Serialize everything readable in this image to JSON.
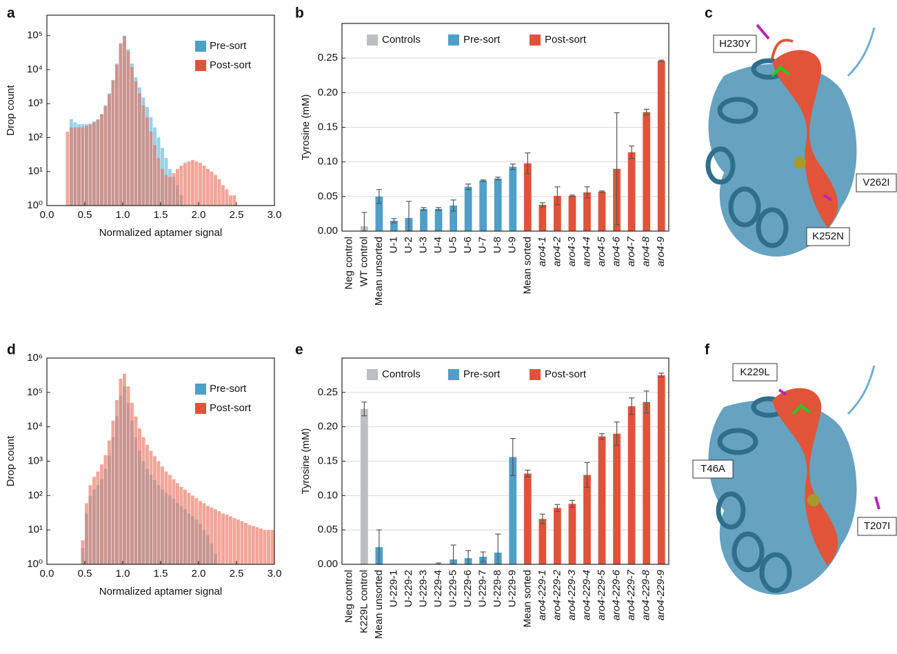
{
  "panel_labels": [
    "a",
    "b",
    "c",
    "d",
    "e",
    "f"
  ],
  "structures": [
    {
      "labels": [
        "H230Y",
        "V262I",
        "K252N"
      ]
    },
    {
      "labels": [
        "K229L",
        "T46A",
        "T207I"
      ]
    }
  ],
  "chart_data": [
    {
      "type": "histogram",
      "xlabel": "Normalized aptamer signal",
      "ylabel": "Drop count",
      "log_y": true,
      "legend": "upper right",
      "xlim": [
        0,
        3
      ],
      "ylim": [
        1,
        400000
      ],
      "xticks": [
        {
          "value": 0,
          "label": "0.0"
        },
        0.5,
        {
          "value": 1,
          "label": "1.0"
        },
        1.5,
        {
          "value": 2,
          "label": "2.0"
        },
        2.5,
        {
          "value": 3,
          "label": "3.0"
        }
      ],
      "yticks": [
        {
          "value": 1,
          "label": "10⁰"
        },
        {
          "value": 10,
          "label": "10¹"
        },
        {
          "value": 100,
          "label": "10²"
        },
        {
          "value": 1000,
          "label": "10³"
        },
        {
          "value": 10000,
          "label": "10⁴"
        },
        {
          "value": 100000,
          "label": "10⁵"
        }
      ],
      "bins": [
        0.2,
        0.25,
        0.3,
        0.35,
        0.4,
        0.45,
        0.5,
        0.55,
        0.6,
        0.65,
        0.7,
        0.75,
        0.8,
        0.85,
        0.9,
        0.95,
        1.0,
        1.05,
        1.1,
        1.15,
        1.2,
        1.25,
        1.3,
        1.35,
        1.4,
        1.45,
        1.5,
        1.55,
        1.6,
        1.65,
        1.7,
        1.75,
        1.8,
        1.85,
        1.9,
        1.95,
        2.0,
        2.05,
        2.1,
        2.15,
        2.2,
        2.25,
        2.3,
        2.35,
        2.4,
        2.45,
        2.5,
        2.55,
        2.6
      ],
      "series": [
        {
          "name": "Pre-sort",
          "color": "#5bb5d8",
          "legend_color": "#4f9fc8",
          "values": [
            null,
            null,
            350,
            280,
            250,
            250,
            250,
            260,
            300,
            350,
            500,
            900,
            2000,
            5000,
            15000,
            60000,
            100000,
            40000,
            15000,
            6000,
            3000,
            1500,
            800,
            400,
            200,
            100,
            50,
            25,
            12,
            7,
            4,
            2,
            1,
            null,
            null,
            null,
            null,
            null,
            null,
            null,
            null,
            null,
            null,
            null,
            null,
            null,
            null,
            null
          ]
        },
        {
          "name": "Post-sort",
          "color": "#e8705a",
          "legend_color": "#e0533a",
          "values": [
            null,
            150,
            200,
            200,
            200,
            200,
            220,
            240,
            280,
            330,
            480,
            850,
            1900,
            4800,
            14000,
            58000,
            95000,
            35000,
            12000,
            4500,
            2000,
            900,
            400,
            150,
            60,
            25,
            12,
            8,
            7,
            9,
            12,
            15,
            18,
            20,
            22,
            20,
            18,
            15,
            12,
            10,
            8,
            6,
            4,
            3,
            2,
            2,
            1,
            null
          ]
        }
      ]
    },
    {
      "type": "bar",
      "ylabel": "Tyrosine (mM)",
      "legend": "upper center",
      "grid": true,
      "ylim": [
        0,
        0.3
      ],
      "yticks": [
        {
          "value": 0,
          "label": "0.00"
        },
        0.05,
        {
          "value": 0.1,
          "label": "0.10"
        },
        0.15,
        {
          "value": 0.2,
          "label": "0.20"
        },
        0.25
      ],
      "categories": [
        "Neg control",
        "WT control",
        "Mean unsorted",
        "U-1",
        "U-2",
        "U-3",
        "U-4",
        "U-5",
        "U-6",
        "U-7",
        "U-8",
        "U-9",
        "Mean sorted",
        "aro4-1",
        "aro4-2",
        "aro4-3",
        "aro4-4",
        "aro4-5",
        "aro4-6",
        "aro4-7",
        "aro4-8",
        "aro4-9"
      ],
      "series": [
        {
          "name": "Controls",
          "color": "#bdbdc4",
          "values": [
            0,
            0.007,
            null,
            null,
            null,
            null,
            null,
            null,
            null,
            null,
            null,
            null,
            null,
            null,
            null,
            null,
            null,
            null,
            null,
            null,
            null,
            null
          ],
          "errors": [
            null,
            0.02,
            null,
            null,
            null,
            null,
            null,
            null,
            null,
            null,
            null,
            null,
            null,
            null,
            null,
            null,
            null,
            null,
            null,
            null,
            null,
            null
          ]
        },
        {
          "name": "Pre-sort",
          "color": "#4f9fc8",
          "values": [
            null,
            null,
            0.05,
            0.015,
            0.019,
            0.032,
            0.032,
            0.037,
            0.064,
            0.073,
            0.076,
            0.093,
            null,
            null,
            null,
            null,
            null,
            null,
            null,
            null,
            null,
            null
          ],
          "errors": [
            null,
            null,
            0.01,
            0.003,
            0.024,
            0.002,
            0.002,
            0.008,
            0.004,
            0.001,
            0.002,
            0.004,
            null,
            null,
            null,
            null,
            null,
            null,
            null,
            null,
            null,
            null
          ]
        },
        {
          "name": "Post-sort",
          "color": "#e0533a",
          "values": [
            null,
            null,
            null,
            null,
            null,
            null,
            null,
            null,
            null,
            null,
            null,
            null,
            0.098,
            0.038,
            0.051,
            0.051,
            0.056,
            0.057,
            0.09,
            0.114,
            0.172,
            0.246
          ],
          "errors": [
            null,
            null,
            null,
            null,
            null,
            null,
            null,
            null,
            null,
            null,
            null,
            null,
            0.015,
            0.003,
            0.013,
            0.001,
            0.008,
            0.001,
            0.081,
            0.009,
            0.004,
            0.001
          ]
        }
      ]
    },
    {
      "type": "histogram",
      "xlabel": "Normalized aptamer signal",
      "ylabel": "Drop count",
      "log_y": true,
      "legend": "upper right",
      "xlim": [
        0,
        3
      ],
      "ylim": [
        1,
        1000000
      ],
      "xticks": [
        {
          "value": 0,
          "label": "0.0"
        },
        0.5,
        {
          "value": 1,
          "label": "1.0"
        },
        1.5,
        {
          "value": 2,
          "label": "2.0"
        },
        2.5,
        {
          "value": 3,
          "label": "3.0"
        }
      ],
      "yticks": [
        {
          "value": 1,
          "label": "10⁰"
        },
        {
          "value": 10,
          "label": "10¹"
        },
        {
          "value": 100,
          "label": "10²"
        },
        {
          "value": 1000,
          "label": "10³"
        },
        {
          "value": 10000,
          "label": "10⁴"
        },
        {
          "value": 100000,
          "label": "10⁵"
        },
        {
          "value": 1000000,
          "label": "10⁶"
        }
      ],
      "bins": [
        0.4,
        0.45,
        0.5,
        0.55,
        0.6,
        0.65,
        0.7,
        0.75,
        0.8,
        0.85,
        0.9,
        0.95,
        1.0,
        1.05,
        1.1,
        1.15,
        1.2,
        1.25,
        1.3,
        1.35,
        1.4,
        1.45,
        1.5,
        1.55,
        1.6,
        1.65,
        1.7,
        1.75,
        1.8,
        1.85,
        1.9,
        1.95,
        2.0,
        2.05,
        2.1,
        2.15,
        2.2,
        2.25,
        2.3,
        2.35,
        2.4,
        2.45,
        2.5,
        2.55,
        2.6,
        2.65,
        2.7,
        2.75,
        2.8,
        2.85,
        2.9,
        2.95,
        3.0
      ],
      "series": [
        {
          "name": "Pre-sort",
          "color": "#5bb5d8",
          "legend_color": "#4f9fc8",
          "values": [
            null,
            3,
            30,
            100,
            150,
            200,
            300,
            600,
            1500,
            5000,
            20000,
            80000,
            150000,
            50000,
            15000,
            5000,
            2000,
            1000,
            600,
            400,
            280,
            200,
            150,
            120,
            100,
            80,
            60,
            50,
            40,
            30,
            25,
            20,
            15,
            10,
            7,
            4,
            2,
            null,
            null,
            null,
            null,
            null,
            null,
            null,
            null,
            null,
            null,
            null,
            null,
            null,
            null,
            null
          ]
        },
        {
          "name": "Post-sort",
          "color": "#e8705a",
          "legend_color": "#e0533a",
          "values": [
            null,
            5,
            60,
            200,
            350,
            500,
            800,
            1500,
            4000,
            15000,
            60000,
            250000,
            350000,
            150000,
            50000,
            20000,
            9000,
            5000,
            3000,
            2000,
            1400,
            1000,
            700,
            500,
            400,
            300,
            230,
            180,
            150,
            120,
            100,
            85,
            70,
            60,
            50,
            45,
            40,
            35,
            30,
            28,
            25,
            22,
            20,
            18,
            16,
            14,
            13,
            12,
            11,
            10,
            10,
            10
          ]
        }
      ]
    },
    {
      "type": "bar",
      "ylabel": "Tyrosine (mM)",
      "legend": "upper center",
      "grid": true,
      "ylim": [
        0,
        0.3
      ],
      "yticks": [
        {
          "value": 0,
          "label": "0.00"
        },
        0.05,
        {
          "value": 0.1,
          "label": "0.10"
        },
        0.15,
        {
          "value": 0.2,
          "label": "0.20"
        },
        0.25
      ],
      "categories": [
        "Neg control",
        "K229L control",
        "Mean unsorted",
        "U-229-1",
        "U-229-2",
        "U-229-3",
        "U-229-4",
        "U-229-5",
        "U-229-6",
        "U-229-7",
        "U-229-8",
        "U-229-9",
        "Mean sorted",
        "aro4-229-1",
        "aro4-229-2",
        "aro4-229-3",
        "aro4-229-4",
        "aro4-229-5",
        "aro4-229-6",
        "aro4-229-7",
        "aro4-229-8",
        "aro4-229-9"
      ],
      "series": [
        {
          "name": "Controls",
          "color": "#bdbdc4",
          "values": [
            0,
            0.226,
            null,
            null,
            null,
            null,
            null,
            null,
            null,
            null,
            null,
            null,
            null,
            null,
            null,
            null,
            null,
            null,
            null,
            null,
            null,
            null
          ],
          "errors": [
            null,
            0.01,
            null,
            null,
            null,
            null,
            null,
            null,
            null,
            null,
            null,
            null,
            null,
            null,
            null,
            null,
            null,
            null,
            null,
            null,
            null,
            null
          ]
        },
        {
          "name": "Pre-sort",
          "color": "#4f9fc8",
          "values": [
            null,
            null,
            0.025,
            0,
            0,
            0,
            0,
            0.007,
            0.009,
            0.011,
            0.017,
            0.156,
            null,
            null,
            null,
            null,
            null,
            null,
            null,
            null,
            null,
            null
          ],
          "errors": [
            null,
            null,
            0.025,
            null,
            null,
            null,
            0.002,
            0.021,
            0.011,
            0.007,
            0.027,
            0.027,
            null,
            null,
            null,
            null,
            null,
            null,
            null,
            null,
            null,
            null
          ]
        },
        {
          "name": "Post-sort",
          "color": "#e0533a",
          "values": [
            null,
            null,
            null,
            null,
            null,
            null,
            null,
            null,
            null,
            null,
            null,
            null,
            0.132,
            0.066,
            0.082,
            0.088,
            0.13,
            0.186,
            0.19,
            0.23,
            0.236,
            0.275
          ],
          "errors": [
            null,
            null,
            null,
            null,
            null,
            null,
            null,
            null,
            null,
            null,
            null,
            null,
            0.005,
            0.007,
            0.005,
            0.005,
            0.018,
            0.004,
            0.017,
            0.012,
            0.016,
            0.003
          ]
        }
      ]
    }
  ]
}
